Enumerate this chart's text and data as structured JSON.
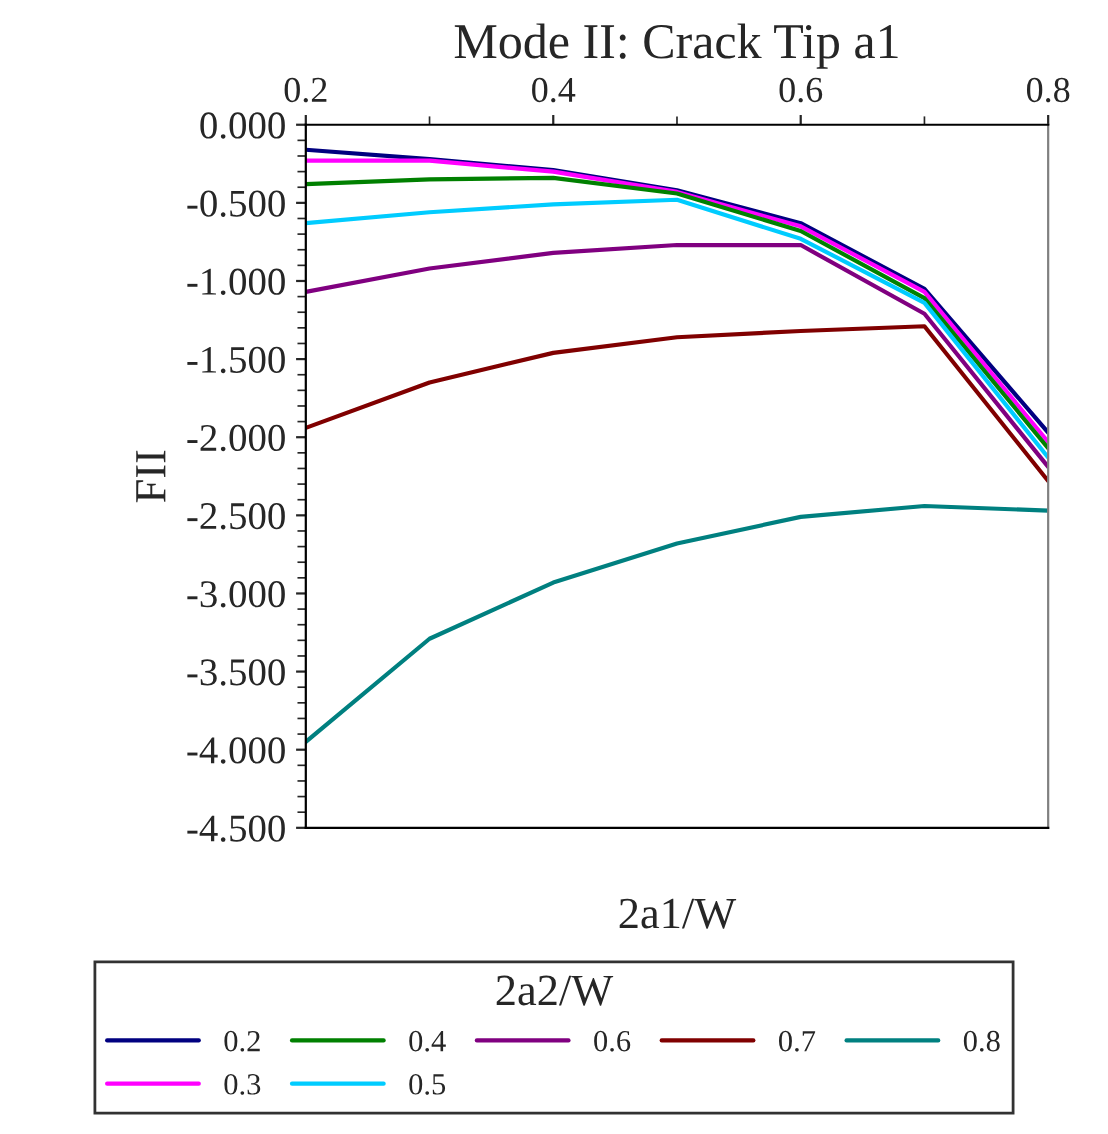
{
  "chart_data": {
    "type": "line",
    "title": "Mode II: Crack Tip a1",
    "xlabel": "2a1/W",
    "ylabel": "FII",
    "legend_title": "2a2/W",
    "x": [
      0.2,
      0.3,
      0.4,
      0.5,
      0.6,
      0.7,
      0.8
    ],
    "series": [
      {
        "name": "0.2",
        "color": "#000080",
        "values": [
          -0.16,
          -0.22,
          -0.29,
          -0.42,
          -0.63,
          -1.05,
          -1.97
        ]
      },
      {
        "name": "0.3",
        "color": "#ff00ff",
        "values": [
          -0.23,
          -0.23,
          -0.3,
          -0.43,
          -0.65,
          -1.07,
          -2.03
        ]
      },
      {
        "name": "0.4",
        "color": "#008000",
        "values": [
          -0.38,
          -0.35,
          -0.34,
          -0.44,
          -0.68,
          -1.11,
          -2.07
        ]
      },
      {
        "name": "0.5",
        "color": "#00ccff",
        "values": [
          -0.63,
          -0.56,
          -0.51,
          -0.48,
          -0.73,
          -1.14,
          -2.13
        ]
      },
      {
        "name": "0.6",
        "color": "#800080",
        "values": [
          -1.07,
          -0.92,
          -0.82,
          -0.77,
          -0.77,
          -1.21,
          -2.19
        ]
      },
      {
        "name": "0.7",
        "color": "#800000",
        "values": [
          -1.94,
          -1.65,
          -1.46,
          -1.36,
          -1.32,
          -1.29,
          -2.28
        ]
      },
      {
        "name": "0.8",
        "color": "#008080",
        "values": [
          -3.95,
          -3.29,
          -2.93,
          -2.68,
          -2.51,
          -2.44,
          -2.47
        ]
      }
    ],
    "xlim": [
      0.2,
      0.8
    ],
    "xticks": [
      0.2,
      0.4,
      0.6,
      0.8
    ],
    "ylim": [
      -4.5,
      0
    ],
    "yticks": [
      {
        "value": 0,
        "label": "0.000"
      },
      {
        "value": -0.5,
        "label": "-0.500"
      },
      {
        "value": -1,
        "label": "-1.000"
      },
      {
        "value": -1.5,
        "label": "-1.500"
      },
      {
        "value": -2,
        "label": "-2.000"
      },
      {
        "value": -2.5,
        "label": "-2.500"
      },
      {
        "value": -3,
        "label": "-3.000"
      },
      {
        "value": -3.5,
        "label": "-3.500"
      },
      {
        "value": -4,
        "label": "-4.000"
      },
      {
        "value": -4.5,
        "label": "-4.500"
      }
    ],
    "grid": false,
    "legend": "bottom",
    "marker": "none",
    "line_style": "solid"
  }
}
